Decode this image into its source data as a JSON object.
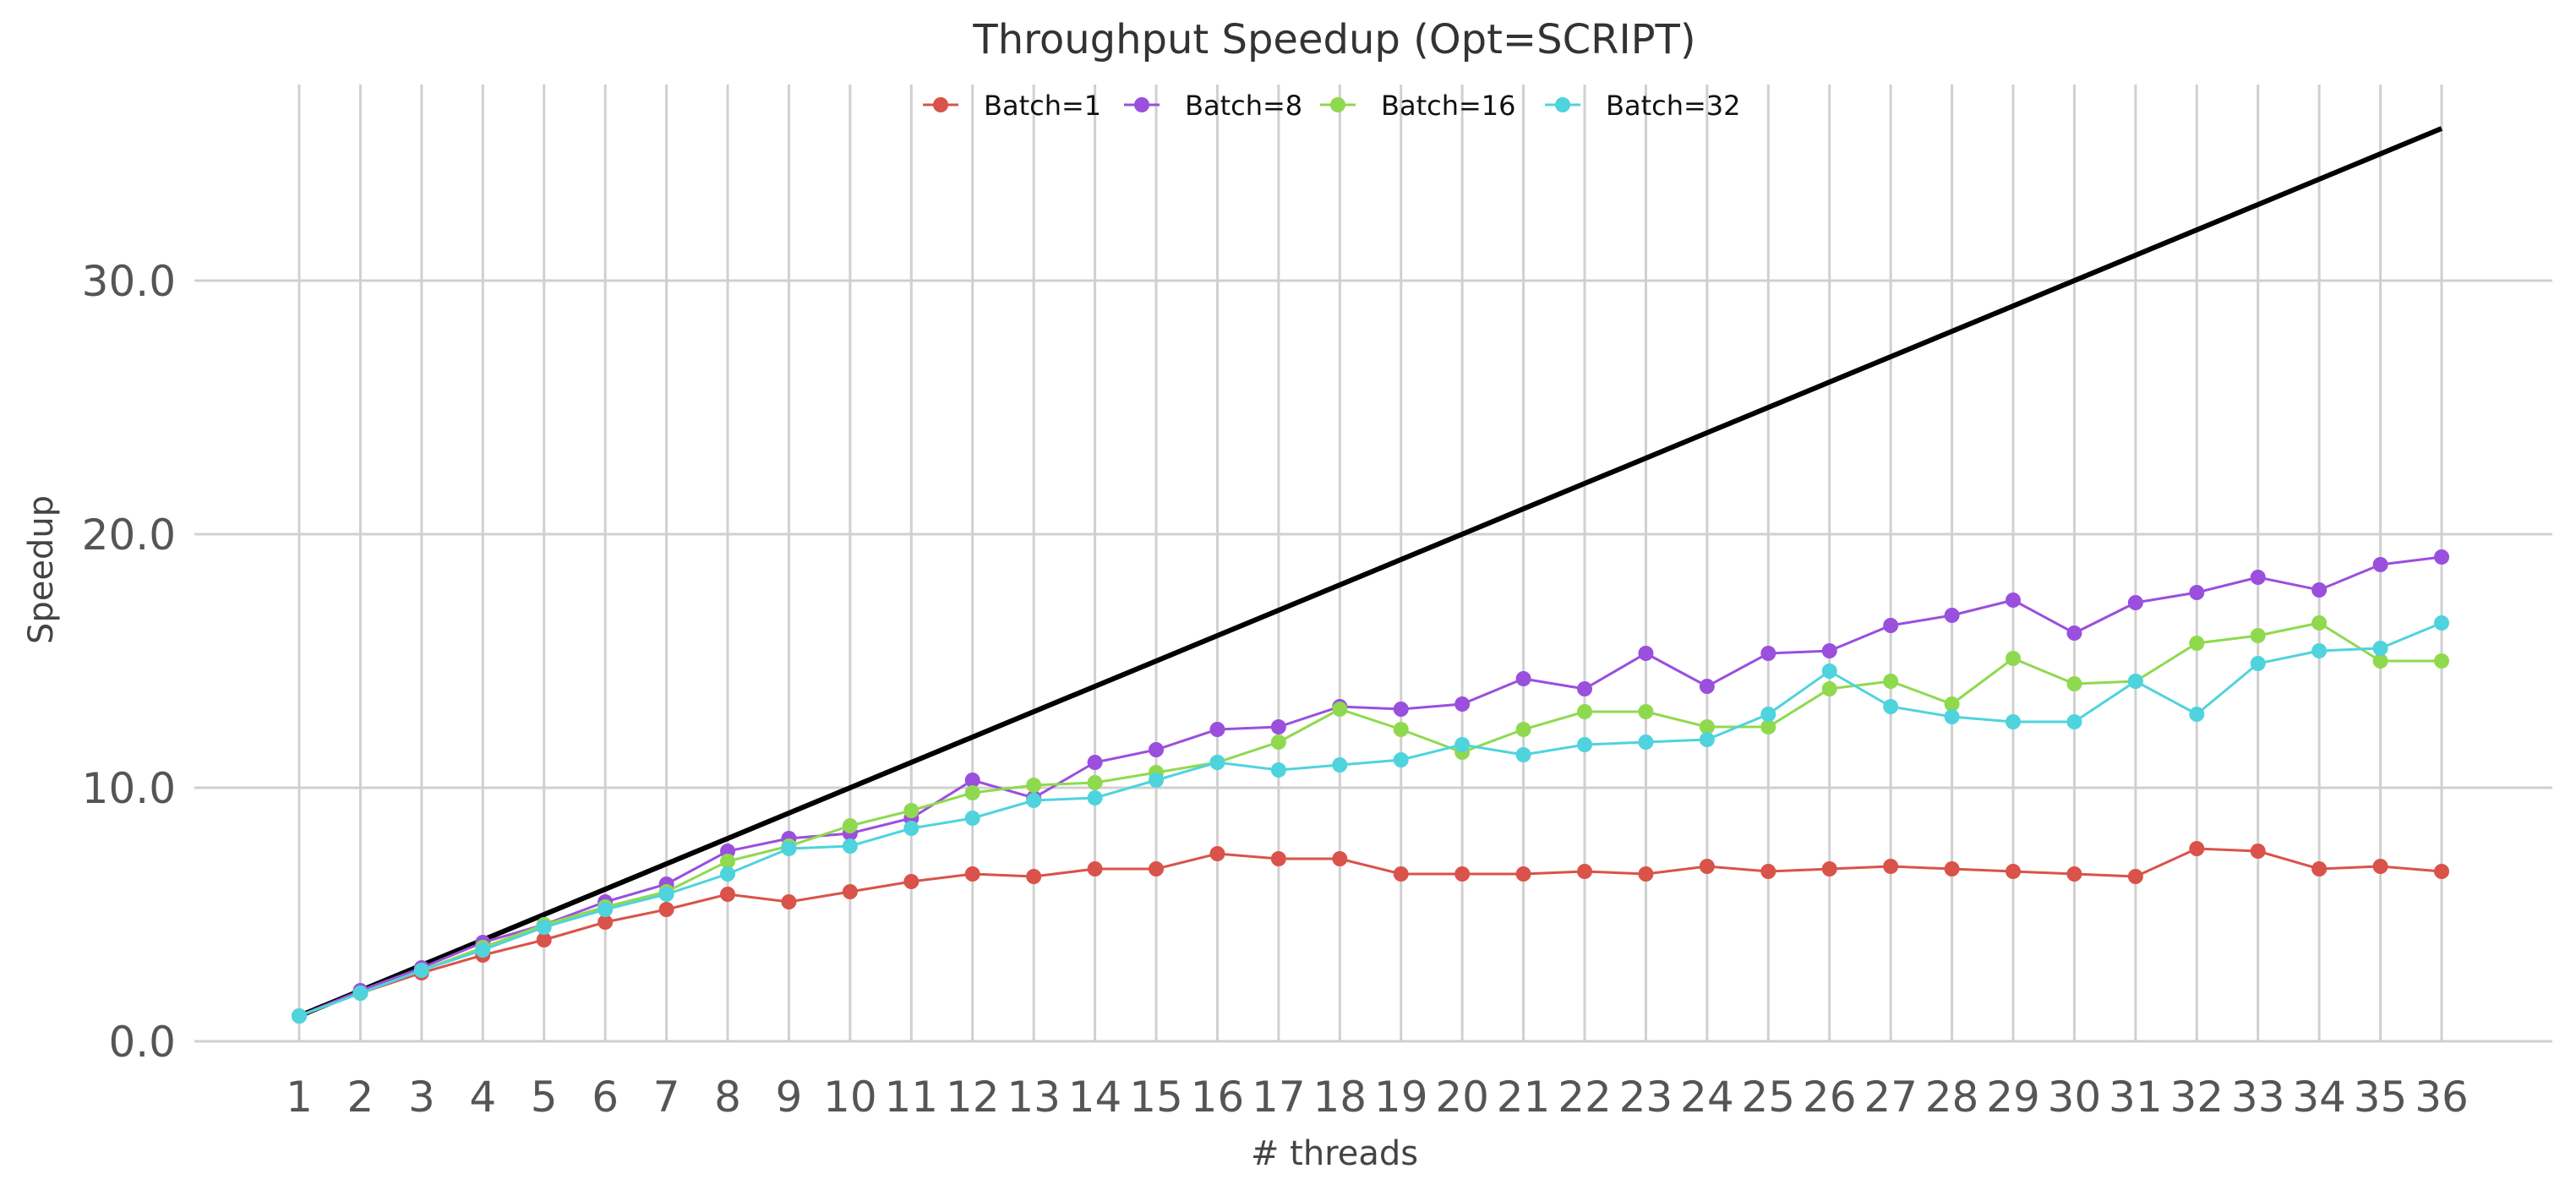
{
  "chart_data": {
    "type": "line",
    "title": "Throughput Speedup (Opt=SCRIPT)",
    "xlabel": "# threads",
    "ylabel": "Speedup",
    "x": [
      1,
      2,
      3,
      4,
      5,
      6,
      7,
      8,
      9,
      10,
      11,
      12,
      13,
      14,
      15,
      16,
      17,
      18,
      19,
      20,
      21,
      22,
      23,
      24,
      25,
      26,
      27,
      28,
      29,
      30,
      31,
      32,
      33,
      34,
      35,
      36
    ],
    "xlim": [
      1,
      36
    ],
    "ylim": [
      0,
      36
    ],
    "yticks": [
      "0.0",
      "10.0",
      "20.0",
      "30.0"
    ],
    "ytick_values": [
      0,
      10,
      20,
      30
    ],
    "grid": true,
    "legend_position": "top-center",
    "reference_line": {
      "x": [
        1,
        36
      ],
      "y": [
        1,
        36
      ],
      "color": "#000000"
    },
    "series": [
      {
        "name": "Batch=1",
        "color": "#d9534a",
        "values": [
          1.0,
          1.9,
          2.7,
          3.4,
          4.0,
          4.7,
          5.2,
          5.8,
          5.5,
          5.9,
          6.3,
          6.6,
          6.5,
          6.8,
          6.8,
          7.4,
          7.2,
          7.2,
          6.6,
          6.6,
          6.6,
          6.7,
          6.6,
          6.9,
          6.7,
          6.8,
          6.9,
          6.8,
          6.7,
          6.6,
          6.5,
          7.6,
          7.5,
          6.8,
          6.9,
          6.7
        ]
      },
      {
        "name": "Batch=8",
        "color": "#9a4fdd",
        "values": [
          1.0,
          2.0,
          2.9,
          3.9,
          4.6,
          5.5,
          6.2,
          7.5,
          8.0,
          8.2,
          8.8,
          10.3,
          9.6,
          11.0,
          11.5,
          12.3,
          12.4,
          13.2,
          13.1,
          13.3,
          14.3,
          13.9,
          15.3,
          14.0,
          15.3,
          15.4,
          16.4,
          16.8,
          17.4,
          16.1,
          17.3,
          17.7,
          18.3,
          17.8,
          18.8,
          19.1
        ]
      },
      {
        "name": "Batch=16",
        "color": "#8fd94f",
        "values": [
          1.0,
          1.9,
          2.8,
          3.7,
          4.6,
          5.3,
          5.9,
          7.1,
          7.7,
          8.5,
          9.1,
          9.8,
          10.1,
          10.2,
          10.6,
          11.0,
          11.8,
          13.1,
          12.3,
          11.4,
          12.3,
          13.0,
          13.0,
          12.4,
          12.4,
          13.9,
          14.2,
          13.3,
          15.1,
          14.1,
          14.2,
          15.7,
          16.0,
          16.5,
          15.0,
          15.0
        ]
      },
      {
        "name": "Batch=32",
        "color": "#4fd3dd",
        "values": [
          1.0,
          1.9,
          2.8,
          3.6,
          4.5,
          5.2,
          5.8,
          6.6,
          7.6,
          7.7,
          8.4,
          8.8,
          9.5,
          9.6,
          10.3,
          11.0,
          10.7,
          10.9,
          11.1,
          11.7,
          11.3,
          11.7,
          11.8,
          11.9,
          12.9,
          14.6,
          13.2,
          12.8,
          12.6,
          12.6,
          14.2,
          12.9,
          14.9,
          15.4,
          15.5,
          16.5
        ]
      }
    ]
  }
}
